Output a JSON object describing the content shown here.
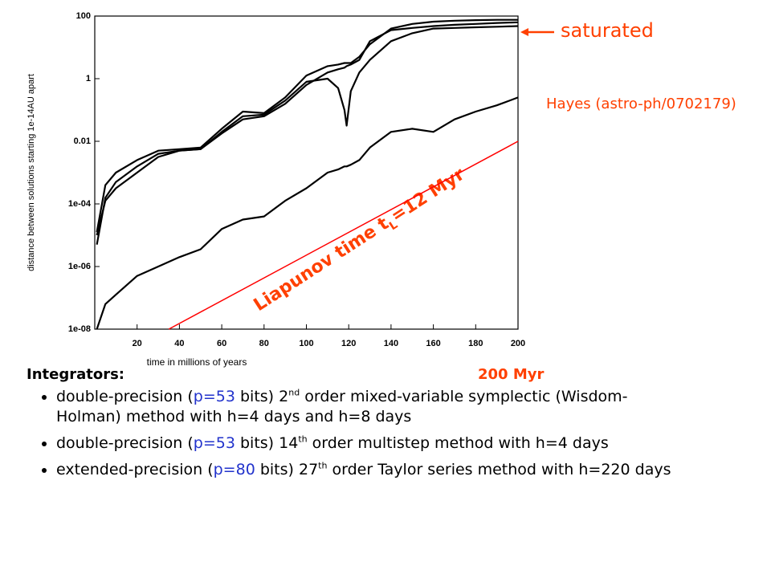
{
  "chart_data": {
    "type": "line",
    "log_y": true,
    "xlabel": "time in millions of years",
    "ylabel": "distance between solutions starting 1e-14AU apart",
    "xlim": [
      0,
      200
    ],
    "xticks": [
      20,
      40,
      60,
      80,
      100,
      120,
      140,
      160,
      180,
      200
    ],
    "ylim": [
      1e-08,
      100
    ],
    "yticks": [
      {
        "value": 1e-08,
        "label": "1e-08"
      },
      {
        "value": 1e-06,
        "label": "1e-06"
      },
      {
        "value": 0.0001,
        "label": "1e-04"
      },
      0.01,
      1,
      100
    ],
    "x": [
      1,
      5,
      10,
      20,
      30,
      40,
      50,
      60,
      70,
      80,
      90,
      100,
      110,
      115,
      118,
      119,
      121,
      125,
      130,
      140,
      150,
      160,
      170,
      180,
      190,
      200
    ],
    "series": [
      {
        "color": "#000000",
        "values": [
          1.26e-05,
          0.000398,
          0.001,
          0.00251,
          0.00501,
          0.00562,
          0.00631,
          0.0251,
          0.0891,
          0.0794,
          0.251,
          1.26,
          2.51,
          2.82,
          3.16,
          3.16,
          3.16,
          5.01,
          12.6,
          39.8,
          56.2,
          66.1,
          70.8,
          74.1,
          75.9,
          75.9
        ]
      },
      {
        "color": "#000000",
        "values": [
          5.01e-06,
          0.000158,
          0.000501,
          0.00158,
          0.00398,
          0.00501,
          0.00562,
          0.02,
          0.0631,
          0.0708,
          0.2,
          0.794,
          1,
          0.501,
          0.1,
          0.0316,
          0.398,
          1.58,
          3.98,
          15.8,
          28.2,
          39.8,
          41.7,
          43.7,
          45.7,
          47.9
        ]
      },
      {
        "color": "#000000",
        "values": [
          1e-05,
          0.000126,
          0.000316,
          0.001,
          0.00316,
          0.00501,
          0.00562,
          0.0178,
          0.0501,
          0.0631,
          0.158,
          0.631,
          1.58,
          2,
          2.24,
          2.51,
          2.82,
          3.98,
          15.8,
          35.5,
          41.7,
          47.9,
          52.5,
          56.2,
          60.3,
          63.1
        ]
      },
      {
        "color": "#000000",
        "values": [
          1e-08,
          6.31e-08,
          1.26e-07,
          5.01e-07,
          1e-06,
          2e-06,
          3.55e-06,
          1.58e-05,
          3.16e-05,
          3.98e-05,
          0.000126,
          0.000316,
          0.001,
          0.00126,
          0.00158,
          0.00158,
          0.00178,
          0.00251,
          0.00631,
          0.02,
          0.0251,
          0.02,
          0.0501,
          0.0891,
          0.141,
          0.251
        ]
      },
      {
        "color": "#ff0000",
        "x": [
          35,
          200
        ],
        "values": [
          1e-08,
          0.01
        ]
      }
    ],
    "annotations": {
      "saturated": "saturated",
      "reference": "Hayes (astro-ph/0702179)",
      "liapunov": {
        "pre": "Liapunov time t",
        "sub": "L",
        "post": "=12 Myr"
      }
    }
  },
  "slide": {
    "heading": "Integrators:",
    "span": "200 Myr",
    "bullets": [
      {
        "pre": "double-precision (",
        "p": "p=53",
        "mid": " bits) 2",
        "sup": "nd",
        "post": " order mixed-variable symplectic (Wisdom-Holman) method with h=4 days and h=8 days"
      },
      {
        "pre": "double-precision (",
        "p": "p=53",
        "mid": " bits) 14",
        "sup": "th",
        "post": " order multistep method with h=4 days"
      },
      {
        "pre": "extended-precision (",
        "p": "p=80",
        "mid": " bits) 27",
        "sup": "th",
        "post": " order Taylor series method with h=220 days"
      }
    ]
  }
}
